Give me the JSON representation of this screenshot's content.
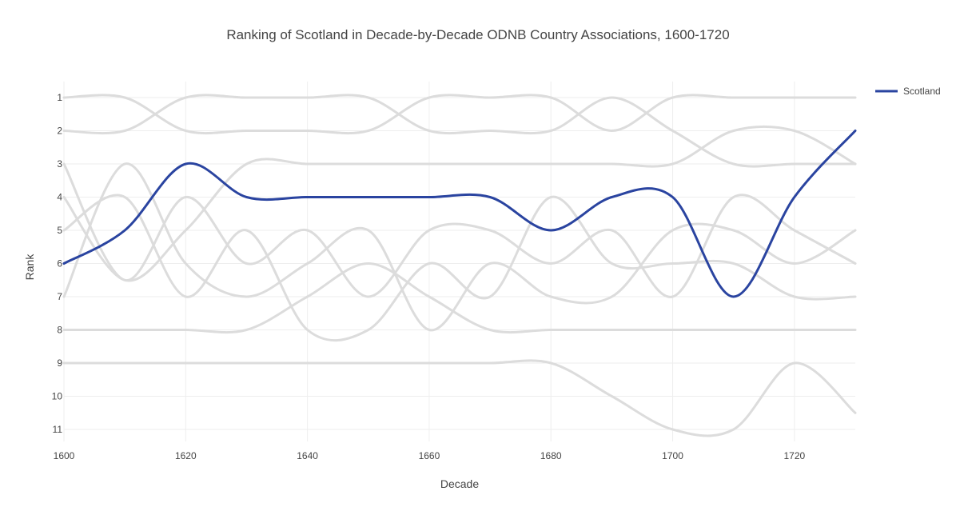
{
  "chart_data": {
    "type": "line",
    "title": "Ranking of Scotland in Decade-by-Decade ODNB Country Associations, 1600-1720",
    "xlabel": "Decade",
    "ylabel": "Rank",
    "x": [
      1600,
      1610,
      1620,
      1630,
      1640,
      1650,
      1660,
      1670,
      1680,
      1690,
      1700,
      1710,
      1720,
      1730
    ],
    "x_ticks": [
      "1600",
      "1620",
      "1640",
      "1660",
      "1680",
      "1700",
      "1720"
    ],
    "x_tick_values": [
      1600,
      1620,
      1640,
      1660,
      1680,
      1700,
      1720
    ],
    "y_ticks": [
      "1",
      "2",
      "3",
      "4",
      "5",
      "6",
      "7",
      "8",
      "9",
      "10",
      "11"
    ],
    "y_tick_values": [
      1,
      2,
      3,
      4,
      5,
      6,
      7,
      8,
      9,
      10,
      11
    ],
    "xlim": [
      1600,
      1730
    ],
    "ylim": [
      11.5,
      0.5
    ],
    "y_reversed": true,
    "grid": true,
    "legend_position": "top-right",
    "highlight_series": {
      "name": "Scotland",
      "color": "#2a44a0",
      "values": [
        6,
        5,
        3,
        4,
        4,
        4,
        4,
        4,
        5,
        4,
        4,
        7,
        4,
        2
      ]
    },
    "background_series": {
      "color": "#dcdcdc",
      "lines": [
        [
          1,
          1,
          2,
          2,
          2,
          2,
          1,
          1,
          1,
          2,
          1,
          1,
          1,
          1
        ],
        [
          2,
          2,
          1,
          1,
          1,
          1,
          2,
          2,
          2,
          1,
          2,
          3,
          3,
          3
        ],
        [
          3,
          6.5,
          4,
          6,
          5,
          7,
          5,
          5,
          6,
          5,
          7,
          4,
          5,
          6
        ],
        [
          4,
          6.5,
          5,
          3,
          3,
          3,
          3,
          3,
          3,
          3,
          3,
          2,
          2,
          3
        ],
        [
          5,
          4,
          7,
          5,
          8,
          8,
          6,
          7,
          4,
          6,
          6,
          6,
          7,
          7
        ],
        [
          7,
          3,
          6,
          7,
          6,
          5,
          8,
          6,
          7,
          7,
          5,
          5,
          6,
          5
        ],
        [
          8,
          8,
          8,
          8,
          7,
          6,
          7,
          8,
          8,
          8,
          8,
          8,
          8,
          8
        ],
        [
          9,
          9,
          9,
          9,
          9,
          9,
          9,
          9,
          9,
          10,
          11,
          11,
          9,
          10.5
        ]
      ]
    }
  }
}
